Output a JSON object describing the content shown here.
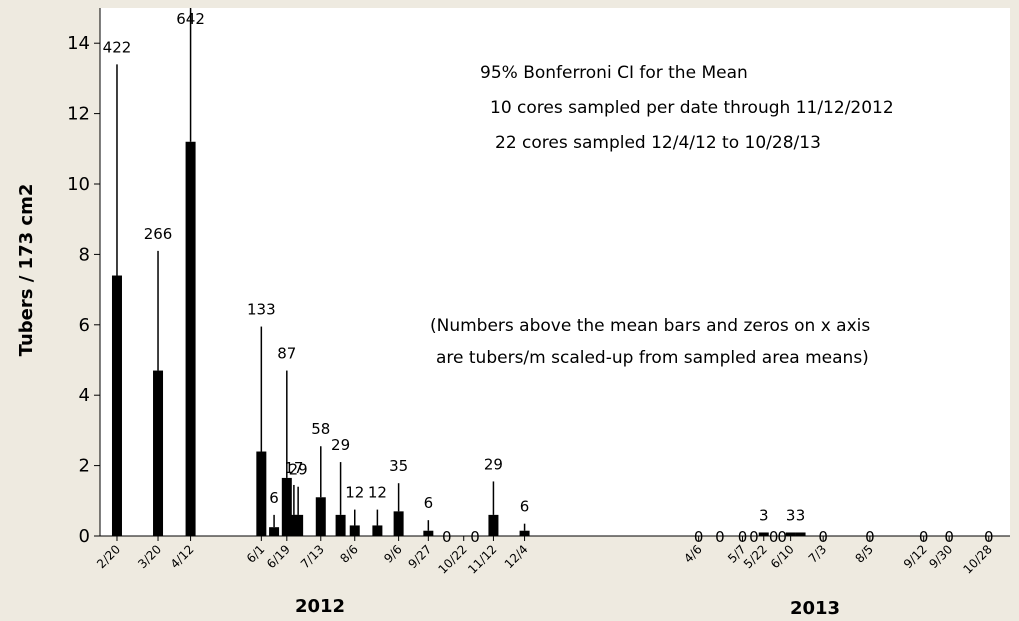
{
  "chart_data": {
    "type": "bar",
    "y_label": "Tubers / 173 cm2",
    "annotations": [
      "95% Bonferroni CI for the Mean",
      "10 cores sampled per date through 11/12/2012",
      "22  cores sampled 12/4/12 to 10/28/13",
      "(Numbers above the mean bars and zeros on x axis",
      "are tubers/m scaled-up from sampled area means)"
    ],
    "year_labels": [
      "2012",
      "2013"
    ],
    "color": "#000000",
    "x": [
      "2012-02-20",
      "2012-03-20",
      "2012-04-12",
      "2012-06-01",
      "2012-06-10",
      "2012-06-19",
      "2012-06-24",
      "2012-06-27",
      "2012-07-13",
      "2012-07-27",
      "2012-08-06",
      "2012-08-22",
      "2012-09-06",
      "2012-09-27",
      "2012-10-10",
      "2012-10-30",
      "2012-11-12",
      "2012-12-04",
      "2013-04-06",
      "2013-04-21",
      "2013-05-07",
      "2013-05-15",
      "2013-05-22",
      "2013-05-29",
      "2013-06-04",
      "2013-06-10",
      "2013-06-17",
      "2013-07-03",
      "2013-08-05",
      "2013-09-12",
      "2013-09-30",
      "2013-10-28"
    ],
    "values": [
      7.4,
      4.7,
      11.2,
      2.4,
      0.25,
      1.65,
      0.6,
      0.6,
      1.1,
      0.6,
      0.3,
      0.3,
      0.7,
      0.15,
      0,
      0,
      0.6,
      0.15,
      0,
      0,
      0,
      0,
      0.1,
      0,
      0,
      0.1,
      0.1,
      0,
      0,
      0,
      0,
      0
    ],
    "ci_upper": [
      13.4,
      8.1,
      15.2,
      5.95,
      0.6,
      4.7,
      1.45,
      1.4,
      2.55,
      2.1,
      0.75,
      0.75,
      1.5,
      0.45,
      null,
      null,
      1.55,
      0.35,
      null,
      null,
      null,
      null,
      null,
      null,
      null,
      null,
      null,
      null,
      null,
      null,
      null,
      null
    ],
    "tubers_per_m": [
      422,
      266,
      642,
      133,
      6,
      87,
      17,
      29,
      58,
      29,
      12,
      12,
      35,
      6,
      0,
      0,
      29,
      6,
      0,
      0,
      0,
      0,
      3,
      0,
      0,
      3,
      3,
      0,
      0,
      0,
      0,
      0
    ],
    "xlim": [
      "2012-02-08",
      "2013-11-12"
    ],
    "xticks": [
      {
        "value": "2012-02-20",
        "label": "2/20"
      },
      {
        "value": "2012-03-20",
        "label": "3/20"
      },
      {
        "value": "2012-04-12",
        "label": "4/12"
      },
      {
        "value": "2012-06-01",
        "label": "6/1"
      },
      {
        "value": "2012-06-19",
        "label": "6/19"
      },
      {
        "value": "2012-07-13",
        "label": "7/13"
      },
      {
        "value": "2012-08-06",
        "label": "8/6"
      },
      {
        "value": "2012-09-06",
        "label": "9/6"
      },
      {
        "value": "2012-09-27",
        "label": "9/27"
      },
      {
        "value": "2012-10-22",
        "label": "10/22"
      },
      {
        "value": "2012-11-12",
        "label": "11/12"
      },
      {
        "value": "2012-12-04",
        "label": "12/4"
      },
      {
        "value": "2013-04-06",
        "label": "4/6"
      },
      {
        "value": "2013-05-07",
        "label": "5/7"
      },
      {
        "value": "2013-05-22",
        "label": "5/22"
      },
      {
        "value": "2013-06-10",
        "label": "6/10"
      },
      {
        "value": "2013-07-03",
        "label": "7/3"
      },
      {
        "value": "2013-08-05",
        "label": "8/5"
      },
      {
        "value": "2013-09-12",
        "label": "9/12"
      },
      {
        "value": "2013-09-30",
        "label": "9/30"
      },
      {
        "value": "2013-10-28",
        "label": "10/28"
      }
    ],
    "ylim": [
      0,
      15
    ],
    "yticks": [
      0,
      2,
      4,
      6,
      8,
      10,
      12,
      14
    ]
  }
}
